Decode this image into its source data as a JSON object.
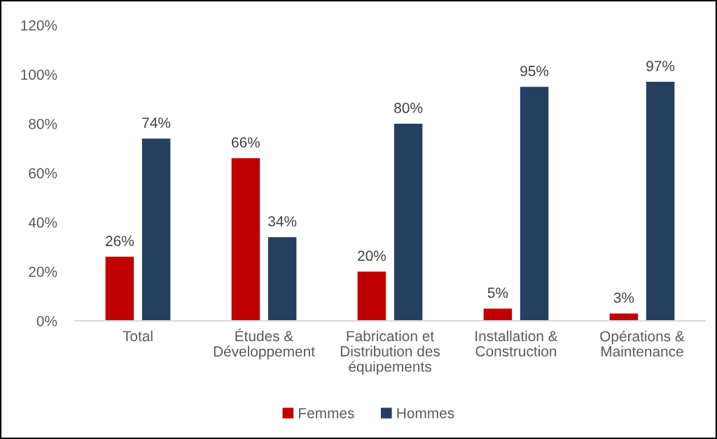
{
  "chart_data": {
    "type": "bar",
    "categories": [
      "Total",
      "Études &\nDéveloppement",
      "Fabrication et\nDistribution des\néquipements",
      "Installation &\nConstruction",
      "Opérations &\nMaintenance"
    ],
    "series": [
      {
        "name": "Femmes",
        "color": "#c00000",
        "values": [
          26,
          66,
          20,
          5,
          3
        ],
        "value_labels": [
          "26%",
          "66%",
          "20%",
          "5%",
          "3%"
        ]
      },
      {
        "name": "Hommes",
        "color": "#243f60",
        "values": [
          74,
          34,
          80,
          95,
          97
        ],
        "value_labels": [
          "74%",
          "34%",
          "80%",
          "95%",
          "97%"
        ]
      }
    ],
    "ylim": [
      0,
      120
    ],
    "yticks": [
      {
        "value": 0,
        "label": "0%"
      },
      {
        "value": 20,
        "label": "20%"
      },
      {
        "value": 40,
        "label": "40%"
      },
      {
        "value": 60,
        "label": "60%"
      },
      {
        "value": 80,
        "label": "80%"
      },
      {
        "value": 100,
        "label": "100%"
      },
      {
        "value": 120,
        "label": "120%"
      }
    ],
    "grid": false,
    "legend": "bottom"
  }
}
